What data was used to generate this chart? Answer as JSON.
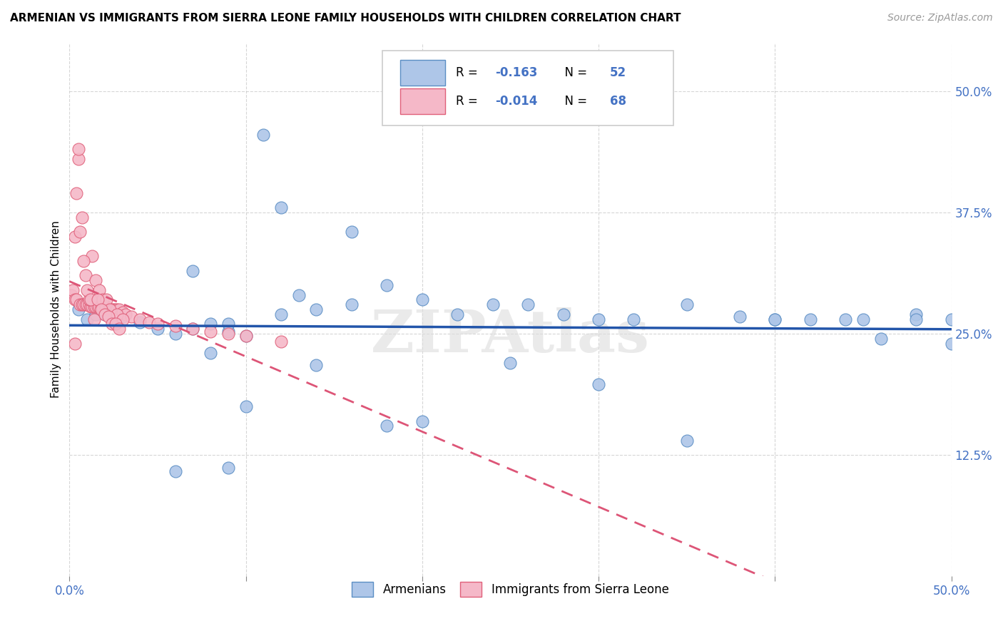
{
  "title": "ARMENIAN VS IMMIGRANTS FROM SIERRA LEONE FAMILY HOUSEHOLDS WITH CHILDREN CORRELATION CHART",
  "source": "Source: ZipAtlas.com",
  "ylabel": "Family Households with Children",
  "xlim": [
    0.0,
    0.5
  ],
  "ylim": [
    0.0,
    0.55
  ],
  "ytick_positions": [
    0.125,
    0.25,
    0.375,
    0.5
  ],
  "ytick_labels": [
    "12.5%",
    "25.0%",
    "37.5%",
    "50.0%"
  ],
  "xtick_positions": [
    0.0,
    0.1,
    0.2,
    0.3,
    0.4,
    0.5
  ],
  "xtick_labels_bottom": [
    "0.0%",
    "",
    "",
    "",
    "",
    "50.0%"
  ],
  "armenian_color": "#aec6e8",
  "armenian_edge_color": "#5b8ec4",
  "sierra_leone_color": "#f5b8c8",
  "sierra_leone_edge_color": "#e0607a",
  "armenian_line_color": "#2255aa",
  "sierra_leone_line_color": "#dd5577",
  "legend_R_armenian": "-0.163",
  "legend_N_armenian": "52",
  "legend_R_sierra": "-0.014",
  "legend_N_sierra": "68",
  "watermark": "ZIPAtlas",
  "legend_text_color": "#4472c4",
  "armenian_x": [
    0.005,
    0.01,
    0.015,
    0.02,
    0.025,
    0.03,
    0.04,
    0.05,
    0.06,
    0.07,
    0.08,
    0.09,
    0.1,
    0.11,
    0.12,
    0.13,
    0.14,
    0.16,
    0.18,
    0.2,
    0.22,
    0.24,
    0.26,
    0.28,
    0.3,
    0.32,
    0.35,
    0.38,
    0.4,
    0.42,
    0.44,
    0.46,
    0.48,
    0.5,
    0.07,
    0.08,
    0.09,
    0.1,
    0.12,
    0.14,
    0.16,
    0.18,
    0.2,
    0.25,
    0.3,
    0.35,
    0.4,
    0.45,
    0.48,
    0.5,
    0.06,
    0.09
  ],
  "armenian_y": [
    0.275,
    0.265,
    0.27,
    0.27,
    0.265,
    0.268,
    0.262,
    0.255,
    0.25,
    0.255,
    0.26,
    0.252,
    0.248,
    0.455,
    0.38,
    0.29,
    0.275,
    0.355,
    0.3,
    0.285,
    0.27,
    0.28,
    0.28,
    0.27,
    0.265,
    0.265,
    0.28,
    0.268,
    0.265,
    0.265,
    0.265,
    0.245,
    0.27,
    0.24,
    0.315,
    0.23,
    0.26,
    0.175,
    0.27,
    0.218,
    0.28,
    0.155,
    0.16,
    0.22,
    0.198,
    0.14,
    0.265,
    0.265,
    0.265,
    0.265,
    0.108,
    0.112
  ],
  "sierra_x": [
    0.001,
    0.002,
    0.003,
    0.004,
    0.005,
    0.006,
    0.007,
    0.008,
    0.009,
    0.01,
    0.011,
    0.012,
    0.013,
    0.014,
    0.015,
    0.016,
    0.017,
    0.018,
    0.019,
    0.02,
    0.021,
    0.022,
    0.023,
    0.024,
    0.025,
    0.026,
    0.027,
    0.028,
    0.03,
    0.032,
    0.035,
    0.04,
    0.045,
    0.05,
    0.06,
    0.07,
    0.08,
    0.09,
    0.1,
    0.12,
    0.003,
    0.005,
    0.007,
    0.009,
    0.011,
    0.013,
    0.015,
    0.017,
    0.019,
    0.021,
    0.023,
    0.025,
    0.027,
    0.03,
    0.003,
    0.004,
    0.006,
    0.008,
    0.01,
    0.012,
    0.014,
    0.016,
    0.018,
    0.02,
    0.022,
    0.024,
    0.026,
    0.028
  ],
  "sierra_y": [
    0.29,
    0.295,
    0.285,
    0.285,
    0.43,
    0.28,
    0.28,
    0.28,
    0.28,
    0.28,
    0.28,
    0.278,
    0.278,
    0.278,
    0.278,
    0.278,
    0.278,
    0.278,
    0.278,
    0.278,
    0.278,
    0.275,
    0.275,
    0.275,
    0.275,
    0.275,
    0.275,
    0.275,
    0.272,
    0.27,
    0.268,
    0.265,
    0.262,
    0.26,
    0.258,
    0.255,
    0.252,
    0.25,
    0.248,
    0.242,
    0.35,
    0.44,
    0.37,
    0.31,
    0.285,
    0.33,
    0.305,
    0.295,
    0.285,
    0.285,
    0.275,
    0.265,
    0.27,
    0.265,
    0.24,
    0.395,
    0.355,
    0.325,
    0.295,
    0.285,
    0.265,
    0.285,
    0.275,
    0.27,
    0.268,
    0.26,
    0.26,
    0.255
  ]
}
